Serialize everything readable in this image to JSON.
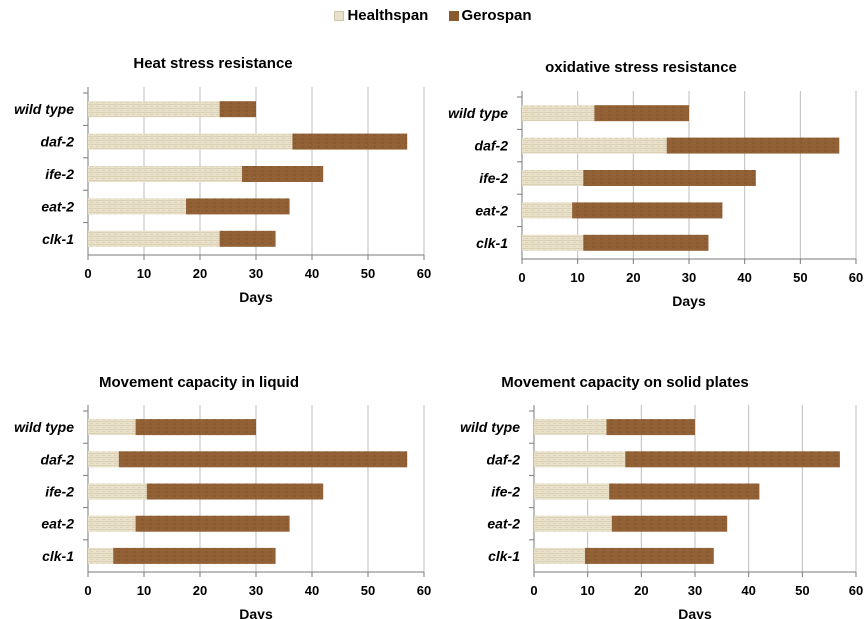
{
  "legend": {
    "healthspan_label": "Healthspan",
    "gerospan_label": "Gerospan"
  },
  "colors": {
    "healthspan": "#e9e1ca",
    "gerospan": "#8a5a31",
    "grid": "#bdbdbd"
  },
  "chart_data": [
    {
      "type": "bar",
      "orientation": "horizontal",
      "stacked": true,
      "title": "Heat stress resistance",
      "xlabel": "Days",
      "ylabel": "",
      "xlim": [
        0,
        60
      ],
      "xticks": [
        0,
        10,
        20,
        30,
        40,
        50,
        60
      ],
      "grid": true,
      "categories": [
        "wild type",
        "daf-2",
        "ife-2",
        "eat-2",
        "clk-1"
      ],
      "series": [
        {
          "name": "Healthspan",
          "values": [
            23.5,
            36.5,
            27.5,
            17.5,
            23.5
          ]
        },
        {
          "name": "Gerospan",
          "values": [
            6.5,
            20.5,
            14.5,
            18.5,
            10.0
          ]
        }
      ]
    },
    {
      "type": "bar",
      "orientation": "horizontal",
      "stacked": true,
      "title": "oxidative stress resistance",
      "xlabel": "Days",
      "ylabel": "",
      "xlim": [
        0,
        60
      ],
      "xticks": [
        0,
        10,
        20,
        30,
        40,
        50,
        60
      ],
      "grid": true,
      "categories": [
        "wild type",
        "daf-2",
        "ife-2",
        "eat-2",
        "clk-1"
      ],
      "series": [
        {
          "name": "Healthspan",
          "values": [
            13.0,
            26.0,
            11.0,
            9.0,
            11.0
          ]
        },
        {
          "name": "Gerospan",
          "values": [
            17.0,
            31.0,
            31.0,
            27.0,
            22.5
          ]
        }
      ]
    },
    {
      "type": "bar",
      "orientation": "horizontal",
      "stacked": true,
      "title": "Movement capacity in liquid",
      "xlabel": "Days",
      "ylabel": "",
      "xlim": [
        0,
        60
      ],
      "xticks": [
        0,
        10,
        20,
        30,
        40,
        50,
        60
      ],
      "grid": true,
      "categories": [
        "wild type",
        "daf-2",
        "ife-2",
        "eat-2",
        "clk-1"
      ],
      "series": [
        {
          "name": "Healthspan",
          "values": [
            8.5,
            5.5,
            10.5,
            8.5,
            4.5
          ]
        },
        {
          "name": "Gerospan",
          "values": [
            21.5,
            51.5,
            31.5,
            27.5,
            29.0
          ]
        }
      ]
    },
    {
      "type": "bar",
      "orientation": "horizontal",
      "stacked": true,
      "title": "Movement capacity on solid plates",
      "xlabel": "Days",
      "ylabel": "",
      "xlim": [
        0,
        60
      ],
      "xticks": [
        0,
        10,
        20,
        30,
        40,
        50,
        60
      ],
      "grid": true,
      "categories": [
        "wild type",
        "daf-2",
        "ife-2",
        "eat-2",
        "clk-1"
      ],
      "series": [
        {
          "name": "Healthspan",
          "values": [
            13.5,
            17.0,
            14.0,
            14.5,
            9.5
          ]
        },
        {
          "name": "Gerospan",
          "values": [
            16.5,
            40.0,
            28.0,
            21.5,
            24.0
          ]
        }
      ]
    }
  ]
}
